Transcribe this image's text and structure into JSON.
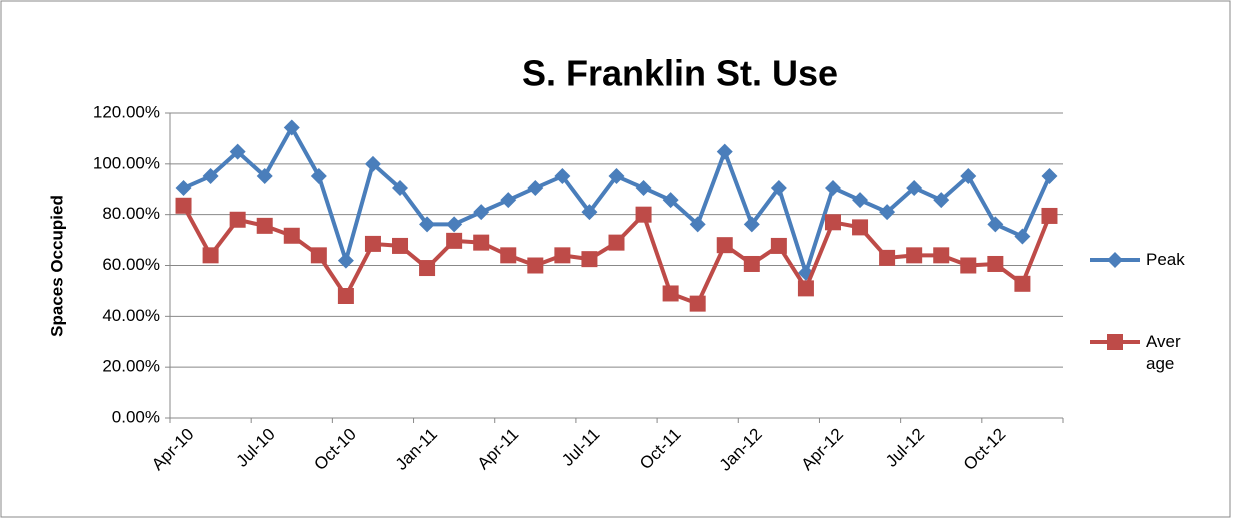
{
  "chart_data": {
    "type": "line",
    "title": "S. Franklin St. Use",
    "ylabel": "Spaces Occupied",
    "categories": [
      "Apr-10",
      null,
      null,
      "Jul-10",
      null,
      null,
      "Oct-10",
      null,
      null,
      "Jan-11",
      null,
      null,
      "Apr-11",
      null,
      null,
      "Jul-11",
      null,
      null,
      "Oct-11",
      null,
      null,
      "Jan-12",
      null,
      null,
      "Apr-12",
      null,
      null,
      "Jul-12",
      null,
      null,
      "Oct-12",
      null,
      null
    ],
    "series": [
      {
        "name": "Peak",
        "color": "#4a7ebb",
        "marker": "diamond",
        "values": [
          90.5,
          95.2,
          104.8,
          95.2,
          114.3,
          95.2,
          61.9,
          100,
          90.5,
          76.2,
          76.2,
          81,
          85.7,
          90.5,
          95.2,
          81,
          95.2,
          90.5,
          85.7,
          76.2,
          104.8,
          76.2,
          90.5,
          57.1,
          90.5,
          85.7,
          81,
          90.5,
          85.7,
          95.2,
          76.2,
          71.4,
          95.2
        ]
      },
      {
        "name": "Average",
        "color": "#be4b48",
        "marker": "square",
        "values": [
          83.5,
          64,
          78,
          75.6,
          71.7,
          64,
          48,
          68.5,
          67.7,
          59,
          69.7,
          69,
          64,
          60,
          64,
          62.5,
          69,
          80,
          49,
          45,
          68,
          60.6,
          67.7,
          51,
          77,
          75,
          63,
          64,
          64,
          60,
          60.6,
          52.8,
          79.5
        ]
      }
    ],
    "ylim": [
      0,
      120
    ],
    "yticks": [
      {
        "value": 0,
        "label": "0.00%"
      },
      {
        "value": 20,
        "label": "20.00%"
      },
      {
        "value": 40,
        "label": "40.00%"
      },
      {
        "value": 60,
        "label": "60.00%"
      },
      {
        "value": 80,
        "label": "80.00%"
      },
      {
        "value": 100,
        "label": "100.00%"
      },
      {
        "value": 120,
        "label": "120.00%"
      }
    ],
    "grid": true,
    "legend": "right"
  }
}
